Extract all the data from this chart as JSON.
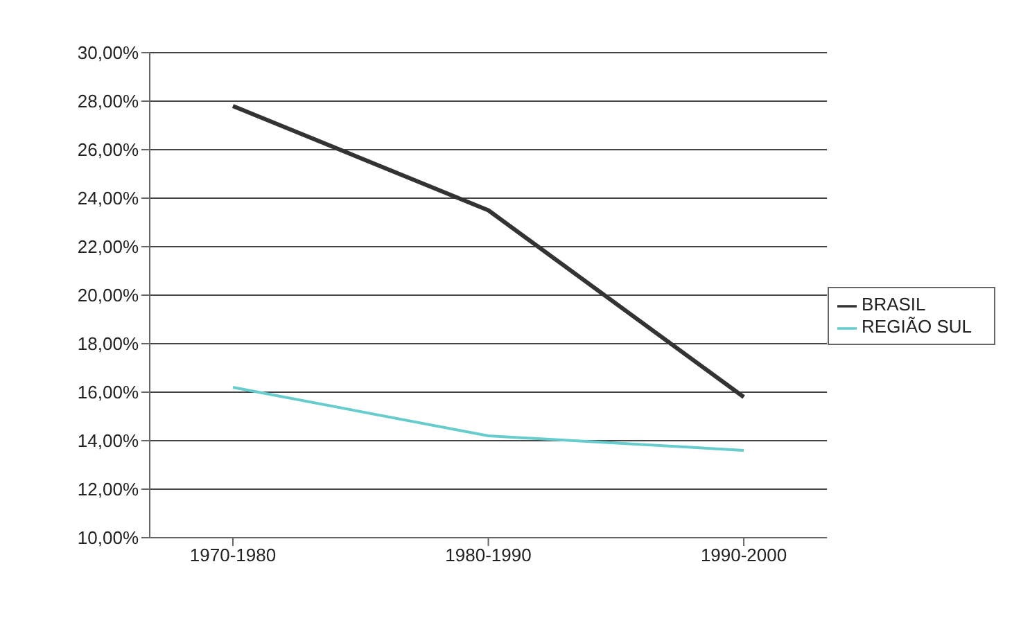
{
  "chart_data": {
    "type": "line",
    "categories": [
      "1970-1980",
      "1980-1990",
      "1990-2000"
    ],
    "series": [
      {
        "name": "BRASIL",
        "color": "#333333",
        "values": [
          27.8,
          23.5,
          15.8
        ]
      },
      {
        "name": "REGIÃO SUL",
        "color": "#66cccc",
        "values": [
          16.2,
          14.2,
          13.6
        ]
      }
    ],
    "ylim": [
      10,
      30
    ],
    "yticks": [
      {
        "value": 10,
        "label": "10,00%"
      },
      {
        "value": 12,
        "label": "12,00%"
      },
      {
        "value": 14,
        "label": "14,00%"
      },
      {
        "value": 16,
        "label": "16,00%"
      },
      {
        "value": 18,
        "label": "18,00%"
      },
      {
        "value": 20,
        "label": "20,00%"
      },
      {
        "value": 22,
        "label": "22,00%"
      },
      {
        "value": 24,
        "label": "24,00%"
      },
      {
        "value": 26,
        "label": "26,00%"
      },
      {
        "value": 28,
        "label": "28,00%"
      },
      {
        "value": 30,
        "label": "30,00%"
      }
    ],
    "grid": "y",
    "legend": "right",
    "marker": "none"
  }
}
